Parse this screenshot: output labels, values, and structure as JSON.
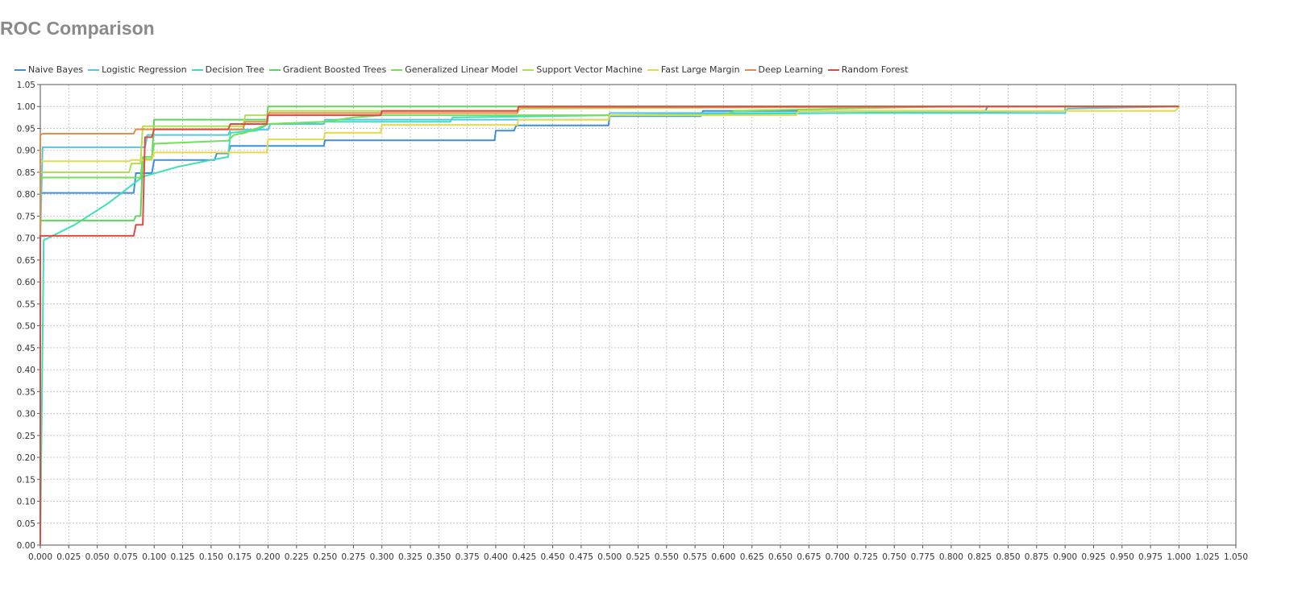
{
  "chart_data": {
    "type": "line",
    "title": "ROC Comparison",
    "xlabel": "",
    "ylabel": "",
    "xlim": [
      0,
      1.05
    ],
    "ylim": [
      0,
      1.05
    ],
    "grid": true,
    "legend_position": "top-left",
    "x_ticks": [
      "0.000",
      "0.025",
      "0.050",
      "0.075",
      "0.100",
      "0.125",
      "0.150",
      "0.175",
      "0.200",
      "0.225",
      "0.250",
      "0.275",
      "0.300",
      "0.325",
      "0.350",
      "0.375",
      "0.400",
      "0.425",
      "0.450",
      "0.475",
      "0.500",
      "0.525",
      "0.550",
      "0.575",
      "0.600",
      "0.625",
      "0.650",
      "0.675",
      "0.700",
      "0.725",
      "0.750",
      "0.775",
      "0.800",
      "0.825",
      "0.850",
      "0.875",
      "0.900",
      "0.925",
      "0.950",
      "0.975",
      "1.000",
      "1.025",
      "1.050"
    ],
    "y_ticks": [
      "0.00",
      "0.05",
      "0.10",
      "0.15",
      "0.20",
      "0.25",
      "0.30",
      "0.35",
      "0.40",
      "0.45",
      "0.50",
      "0.55",
      "0.60",
      "0.65",
      "0.70",
      "0.75",
      "0.80",
      "0.85",
      "0.90",
      "0.95",
      "1.00",
      "1.05"
    ],
    "series": [
      {
        "name": "Naive Bayes",
        "color": "#3d8fe0",
        "x": [
          0,
          0,
          0.002,
          0.082,
          0.084,
          0.098,
          0.1,
          0.153,
          0.155,
          0.165,
          0.167,
          0.249,
          0.25,
          0.399,
          0.4,
          0.416,
          0.418,
          0.499,
          0.5,
          0.58,
          0.582,
          0.83,
          0.832,
          1.0
        ],
        "y": [
          0,
          0.8,
          0.803,
          0.803,
          0.848,
          0.848,
          0.878,
          0.878,
          0.893,
          0.893,
          0.91,
          0.91,
          0.923,
          0.923,
          0.945,
          0.945,
          0.957,
          0.957,
          0.978,
          0.978,
          0.99,
          0.99,
          1.0,
          1.0
        ]
      },
      {
        "name": "Logistic Regression",
        "color": "#55c8e0",
        "x": [
          0,
          0,
          0.002,
          0.092,
          0.094,
          0.165,
          0.167,
          0.2,
          0.202,
          0.249,
          0.25,
          0.499,
          0.5,
          0.9,
          0.902,
          1.0
        ],
        "y": [
          0,
          0.7,
          0.907,
          0.907,
          0.935,
          0.935,
          0.947,
          0.947,
          0.96,
          0.96,
          0.97,
          0.97,
          0.985,
          0.985,
          0.995,
          1.0
        ]
      },
      {
        "name": "Decision Tree",
        "color": "#3ee0b8",
        "x": [
          0,
          0.003,
          0.03,
          0.06,
          0.09,
          0.12,
          0.15,
          0.165,
          0.167,
          0.19,
          0.2,
          0.25,
          0.3,
          0.36,
          0.362,
          0.5,
          0.7,
          0.9,
          0.9,
          1.0
        ],
        "y": [
          0,
          0.695,
          0.73,
          0.78,
          0.84,
          0.862,
          0.878,
          0.885,
          0.94,
          0.945,
          0.96,
          0.965,
          0.965,
          0.965,
          0.975,
          0.98,
          0.985,
          0.99,
          1.0,
          1.0
        ]
      },
      {
        "name": "Gradient Boosted Trees",
        "color": "#5ed65e",
        "x": [
          0,
          0,
          0.002,
          0.082,
          0.084,
          0.088,
          0.09,
          0.098,
          0.1,
          0.199,
          0.2,
          0.42,
          1.0
        ],
        "y": [
          0,
          0.74,
          0.74,
          0.74,
          0.75,
          0.75,
          0.88,
          0.88,
          0.97,
          0.97,
          1.0,
          1.0,
          1.0
        ]
      },
      {
        "name": "Generalized Linear Model",
        "color": "#72e05a",
        "x": [
          0,
          0,
          0.002,
          0.088,
          0.09,
          0.098,
          0.1,
          0.165,
          0.17,
          0.18,
          0.2,
          0.25,
          0.275,
          0.3,
          0.5,
          0.6,
          0.61,
          0.8,
          1.0
        ],
        "y": [
          0,
          0.83,
          0.838,
          0.838,
          0.885,
          0.885,
          0.915,
          0.922,
          0.935,
          0.94,
          0.96,
          0.965,
          0.975,
          0.98,
          0.98,
          0.98,
          0.99,
          1.0,
          1.0
        ]
      },
      {
        "name": "Support Vector Machine",
        "color": "#b0e050",
        "x": [
          0,
          0,
          0.002,
          0.078,
          0.08,
          0.088,
          0.09,
          0.178,
          0.18,
          0.2,
          0.202,
          0.42,
          0.422,
          0.8,
          1.0
        ],
        "y": [
          0,
          0.85,
          0.85,
          0.85,
          0.87,
          0.87,
          0.955,
          0.955,
          0.98,
          0.98,
          0.99,
          0.99,
          0.995,
          1.0,
          1.0
        ]
      },
      {
        "name": "Fast Large Margin",
        "color": "#e6da4a",
        "x": [
          0,
          0,
          0.002,
          0.078,
          0.08,
          0.098,
          0.1,
          0.199,
          0.2,
          0.249,
          0.25,
          0.299,
          0.3,
          0.419,
          0.42,
          0.499,
          0.5,
          0.664,
          0.666,
          0.997,
          1.0
        ],
        "y": [
          0,
          0.875,
          0.875,
          0.875,
          0.878,
          0.878,
          0.895,
          0.895,
          0.925,
          0.925,
          0.94,
          0.94,
          0.958,
          0.958,
          0.97,
          0.97,
          0.98,
          0.98,
          0.99,
          0.99,
          1.0
        ]
      },
      {
        "name": "Deep Learning",
        "color": "#e88c48",
        "x": [
          0,
          0,
          0.002,
          0.082,
          0.084,
          0.178,
          0.18,
          0.199,
          0.2,
          0.419,
          0.42,
          1.0
        ],
        "y": [
          0,
          0.935,
          0.938,
          0.938,
          0.948,
          0.948,
          0.965,
          0.965,
          0.985,
          0.985,
          0.998,
          1.0
        ]
      },
      {
        "name": "Random Forest",
        "color": "#e04a44",
        "x": [
          0,
          0,
          0.002,
          0.082,
          0.084,
          0.09,
          0.092,
          0.098,
          0.1,
          0.165,
          0.167,
          0.199,
          0.2,
          0.299,
          0.3,
          0.419,
          0.42,
          1.0
        ],
        "y": [
          0,
          0.705,
          0.705,
          0.705,
          0.73,
          0.73,
          0.93,
          0.93,
          0.948,
          0.948,
          0.96,
          0.96,
          0.98,
          0.98,
          0.99,
          0.99,
          1.0,
          1.0
        ]
      }
    ]
  }
}
